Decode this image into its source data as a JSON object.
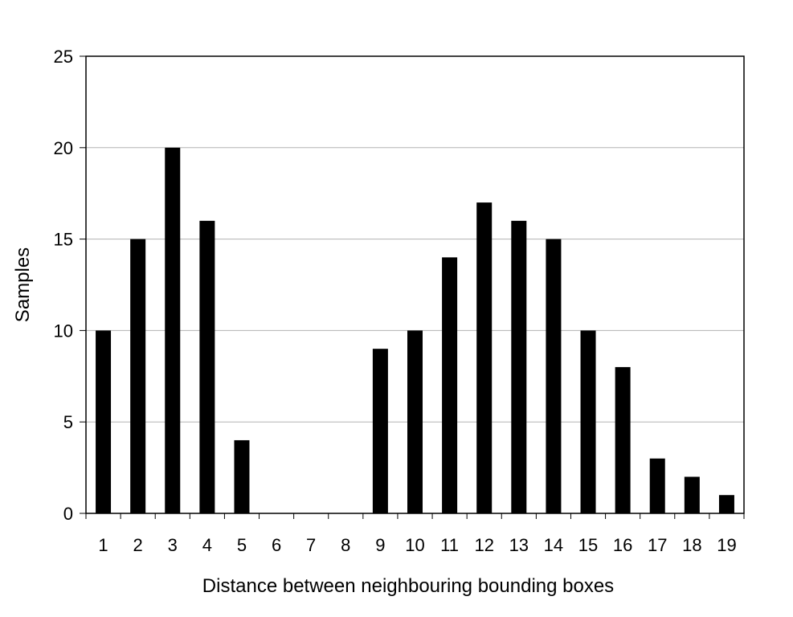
{
  "chart_data": {
    "type": "bar",
    "title": "",
    "xlabel": "Distance between neighbouring bounding boxes",
    "ylabel": "Samples",
    "categories": [
      "1",
      "2",
      "3",
      "4",
      "5",
      "6",
      "7",
      "8",
      "9",
      "10",
      "11",
      "12",
      "13",
      "14",
      "15",
      "16",
      "17",
      "18",
      "19"
    ],
    "values": [
      10,
      15,
      20,
      16,
      4,
      0,
      0,
      0,
      9,
      10,
      14,
      17,
      16,
      15,
      10,
      8,
      3,
      2,
      1
    ],
    "ylim": [
      0,
      25
    ],
    "yticks": [
      0,
      5,
      10,
      15,
      20,
      25
    ],
    "grid": "horizontal",
    "legend": "none",
    "bar_color": "#000000",
    "grid_color": "#b3b3b3"
  }
}
